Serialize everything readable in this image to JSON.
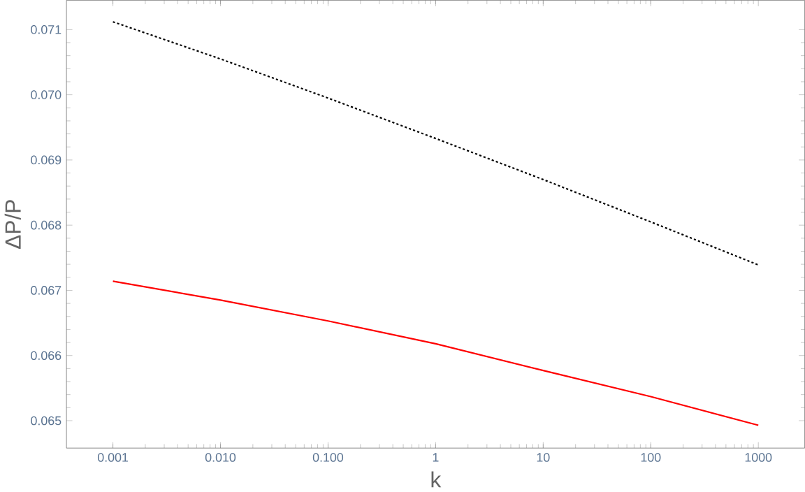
{
  "chart_data": {
    "type": "line",
    "xlabel": "k",
    "ylabel": "ΔP/P",
    "log": "x",
    "grid": false,
    "xlim": [
      0.00037,
      2700
    ],
    "ylim": [
      0.06458,
      0.07145
    ],
    "xticks": [
      {
        "value": 0.001,
        "label": "0.001"
      },
      {
        "value": 0.01,
        "label": "0.010"
      },
      {
        "value": 0.1,
        "label": "0.100"
      },
      {
        "value": 1,
        "label": "1"
      },
      {
        "value": 10,
        "label": "10"
      },
      {
        "value": 100,
        "label": "100"
      },
      {
        "value": 1000,
        "label": "1000"
      }
    ],
    "yticks": [
      {
        "value": 0.065,
        "label": "0.065"
      },
      {
        "value": 0.066,
        "label": "0.066"
      },
      {
        "value": 0.067,
        "label": "0.067"
      },
      {
        "value": 0.068,
        "label": "0.068"
      },
      {
        "value": 0.069,
        "label": "0.069"
      },
      {
        "value": 0.07,
        "label": "0.070"
      },
      {
        "value": 0.071,
        "label": "0.071"
      }
    ],
    "x": [
      0.001,
      0.01,
      0.1,
      1,
      10,
      100,
      1000
    ],
    "series": [
      {
        "color": "#000000",
        "line_style": "dotted",
        "values": [
          0.07112,
          0.07055,
          0.06995,
          0.06933,
          0.0687,
          0.06805,
          0.06739
        ]
      },
      {
        "color": "#ff0000",
        "line_style": "solid",
        "values": [
          0.06714,
          0.06685,
          0.06653,
          0.06618,
          0.06577,
          0.06537,
          0.06493
        ]
      }
    ]
  }
}
